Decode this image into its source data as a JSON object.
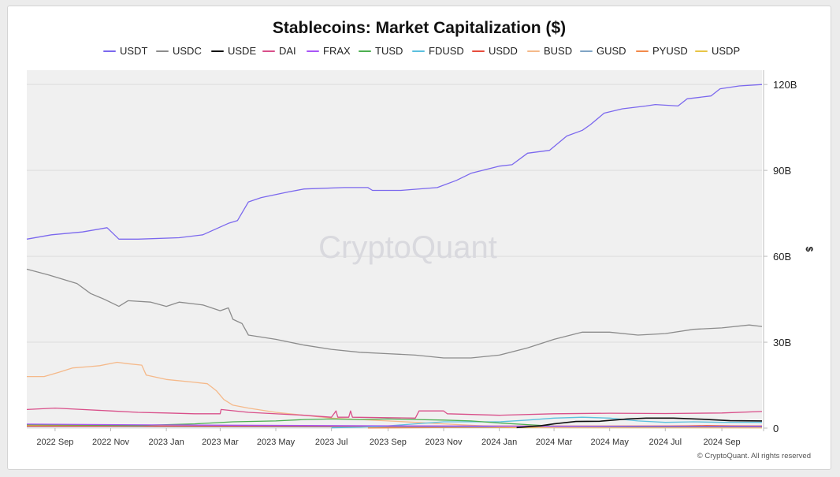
{
  "chart_data": {
    "type": "line",
    "title": "Stablecoins: Market Capitalization ($)",
    "ylabel": "$",
    "ylim": [
      0,
      125000000000
    ],
    "yticks": [
      {
        "value": 0,
        "label": "0"
      },
      {
        "value": 30000000000,
        "label": "30B"
      },
      {
        "value": 60000000000,
        "label": "60B"
      },
      {
        "value": 90000000000,
        "label": "90B"
      },
      {
        "value": 120000000000,
        "label": "120B"
      }
    ],
    "xlim": [
      "2022-08-01",
      "2024-10-15"
    ],
    "xticks": [
      {
        "value": "2022-09-01",
        "label": "2022 Sep"
      },
      {
        "value": "2022-11-01",
        "label": "2022 Nov"
      },
      {
        "value": "2023-01-01",
        "label": "2023 Jan"
      },
      {
        "value": "2023-03-01",
        "label": "2023 Mar"
      },
      {
        "value": "2023-05-01",
        "label": "2023 May"
      },
      {
        "value": "2023-07-01",
        "label": "2023 Jul"
      },
      {
        "value": "2023-09-01",
        "label": "2023 Sep"
      },
      {
        "value": "2023-11-01",
        "label": "2023 Nov"
      },
      {
        "value": "2024-01-01",
        "label": "2024 Jan"
      },
      {
        "value": "2024-03-01",
        "label": "2024 Mar"
      },
      {
        "value": "2024-05-01",
        "label": "2024 May"
      },
      {
        "value": "2024-07-01",
        "label": "2024 Jul"
      },
      {
        "value": "2024-09-01",
        "label": "2024 Sep"
      }
    ],
    "grid": true,
    "legend_position": "top",
    "watermark": "CryptoQuant",
    "copyright": "© CryptoQuant. All rights reserved",
    "series": [
      {
        "name": "USDT",
        "color": "#7b68ee",
        "points": [
          [
            "2022-08-01",
            66
          ],
          [
            "2022-08-28",
            67.5
          ],
          [
            "2022-10-01",
            68.5
          ],
          [
            "2022-10-28",
            70
          ],
          [
            "2022-11-10",
            66
          ],
          [
            "2022-12-01",
            66
          ],
          [
            "2023-01-15",
            66.5
          ],
          [
            "2023-02-10",
            67.5
          ],
          [
            "2023-03-10",
            71.5
          ],
          [
            "2023-03-20",
            72.5
          ],
          [
            "2023-04-01",
            79
          ],
          [
            "2023-04-15",
            80.5
          ],
          [
            "2023-05-15",
            82.5
          ],
          [
            "2023-06-01",
            83.5
          ],
          [
            "2023-07-15",
            84
          ],
          [
            "2023-08-10",
            84
          ],
          [
            "2023-08-15",
            83
          ],
          [
            "2023-09-15",
            83
          ],
          [
            "2023-10-25",
            84
          ],
          [
            "2023-11-15",
            86.5
          ],
          [
            "2023-12-01",
            89
          ],
          [
            "2024-01-01",
            91.5
          ],
          [
            "2024-01-15",
            92
          ],
          [
            "2024-02-01",
            96
          ],
          [
            "2024-02-25",
            97
          ],
          [
            "2024-03-15",
            102
          ],
          [
            "2024-04-01",
            104
          ],
          [
            "2024-04-10",
            106
          ],
          [
            "2024-04-25",
            110
          ],
          [
            "2024-05-15",
            111.5
          ],
          [
            "2024-06-10",
            112.5
          ],
          [
            "2024-06-20",
            113
          ],
          [
            "2024-07-15",
            112.5
          ],
          [
            "2024-07-25",
            115
          ],
          [
            "2024-08-20",
            116
          ],
          [
            "2024-08-30",
            118.5
          ],
          [
            "2024-09-20",
            119.5
          ],
          [
            "2024-10-15",
            120
          ]
        ]
      },
      {
        "name": "USDC",
        "color": "#8c8c8c",
        "points": [
          [
            "2022-08-01",
            55.5
          ],
          [
            "2022-08-25",
            53.5
          ],
          [
            "2022-09-25",
            50.5
          ],
          [
            "2022-10-10",
            47
          ],
          [
            "2022-10-25",
            45
          ],
          [
            "2022-11-10",
            42.5
          ],
          [
            "2022-11-20",
            44.5
          ],
          [
            "2022-12-15",
            44
          ],
          [
            "2023-01-01",
            42.5
          ],
          [
            "2023-01-15",
            44
          ],
          [
            "2023-02-10",
            43
          ],
          [
            "2023-03-01",
            41
          ],
          [
            "2023-03-10",
            42
          ],
          [
            "2023-03-15",
            38
          ],
          [
            "2023-03-25",
            36.5
          ],
          [
            "2023-04-01",
            32.5
          ],
          [
            "2023-05-01",
            31
          ],
          [
            "2023-06-01",
            29
          ],
          [
            "2023-07-01",
            27.5
          ],
          [
            "2023-08-01",
            26.5
          ],
          [
            "2023-09-01",
            26
          ],
          [
            "2023-10-01",
            25.5
          ],
          [
            "2023-11-01",
            24.5
          ],
          [
            "2023-12-01",
            24.5
          ],
          [
            "2024-01-01",
            25.5
          ],
          [
            "2024-02-01",
            28
          ],
          [
            "2024-03-01",
            31
          ],
          [
            "2024-04-01",
            33.5
          ],
          [
            "2024-05-01",
            33.5
          ],
          [
            "2024-06-01",
            32.5
          ],
          [
            "2024-07-01",
            33
          ],
          [
            "2024-08-01",
            34.5
          ],
          [
            "2024-09-01",
            35
          ],
          [
            "2024-10-01",
            36
          ],
          [
            "2024-10-15",
            35.5
          ]
        ]
      },
      {
        "name": "USDE",
        "color": "#111111",
        "points": [
          [
            "2024-01-20",
            0.2
          ],
          [
            "2024-02-15",
            0.8
          ],
          [
            "2024-03-01",
            1.5
          ],
          [
            "2024-03-25",
            2.3
          ],
          [
            "2024-04-20",
            2.4
          ],
          [
            "2024-05-20",
            3.2
          ],
          [
            "2024-06-10",
            3.5
          ],
          [
            "2024-07-10",
            3.5
          ],
          [
            "2024-08-10",
            3.1
          ],
          [
            "2024-09-10",
            2.6
          ],
          [
            "2024-10-15",
            2.5
          ]
        ]
      },
      {
        "name": "DAI",
        "color": "#d94f8a",
        "points": [
          [
            "2022-08-01",
            6.5
          ],
          [
            "2022-09-01",
            7
          ],
          [
            "2022-10-01",
            6.5
          ],
          [
            "2022-11-01",
            6
          ],
          [
            "2022-12-01",
            5.5
          ],
          [
            "2023-01-01",
            5.3
          ],
          [
            "2023-02-01",
            5
          ],
          [
            "2023-03-01",
            5
          ],
          [
            "2023-03-02",
            6.5
          ],
          [
            "2023-04-01",
            5.5
          ],
          [
            "2023-06-01",
            4.5
          ],
          [
            "2023-07-01",
            3.8
          ],
          [
            "2023-07-06",
            6
          ],
          [
            "2023-07-08",
            3.8
          ],
          [
            "2023-07-20",
            3.8
          ],
          [
            "2023-07-22",
            6
          ],
          [
            "2023-07-24",
            3.8
          ],
          [
            "2023-10-01",
            3.5
          ],
          [
            "2023-10-05",
            6
          ],
          [
            "2023-11-01",
            6
          ],
          [
            "2023-11-05",
            5
          ],
          [
            "2024-01-01",
            4.5
          ],
          [
            "2024-03-01",
            5
          ],
          [
            "2024-05-01",
            5.2
          ],
          [
            "2024-07-01",
            5.1
          ],
          [
            "2024-09-01",
            5.3
          ],
          [
            "2024-10-15",
            5.8
          ]
        ]
      },
      {
        "name": "FRAX",
        "color": "#a855f7",
        "points": [
          [
            "2022-08-01",
            1.4
          ],
          [
            "2023-01-01",
            1.1
          ],
          [
            "2023-06-01",
            0.9
          ],
          [
            "2024-01-01",
            0.7
          ],
          [
            "2024-10-15",
            0.6
          ]
        ]
      },
      {
        "name": "TUSD",
        "color": "#4caf50",
        "points": [
          [
            "2022-08-01",
            1.2
          ],
          [
            "2022-12-01",
            0.9
          ],
          [
            "2023-02-01",
            1.5
          ],
          [
            "2023-03-15",
            2.2
          ],
          [
            "2023-05-01",
            2.5
          ],
          [
            "2023-06-01",
            3
          ],
          [
            "2023-07-01",
            3.2
          ],
          [
            "2023-08-01",
            3
          ],
          [
            "2023-09-01",
            3.2
          ],
          [
            "2023-10-01",
            3
          ],
          [
            "2023-11-01",
            2.8
          ],
          [
            "2023-12-01",
            2.5
          ],
          [
            "2024-01-01",
            1.8
          ],
          [
            "2024-02-01",
            1.2
          ],
          [
            "2024-03-01",
            0.7
          ],
          [
            "2024-06-01",
            0.5
          ],
          [
            "2024-10-15",
            0.5
          ]
        ]
      },
      {
        "name": "FDUSD",
        "color": "#5bc0de",
        "points": [
          [
            "2023-07-01",
            0.1
          ],
          [
            "2023-08-01",
            0.3
          ],
          [
            "2023-09-01",
            0.8
          ],
          [
            "2023-10-01",
            1.5
          ],
          [
            "2023-11-01",
            2.2
          ],
          [
            "2024-01-01",
            2.2
          ],
          [
            "2024-02-01",
            2.8
          ],
          [
            "2024-03-01",
            3.5
          ],
          [
            "2024-04-01",
            3.8
          ],
          [
            "2024-05-01",
            3.5
          ],
          [
            "2024-06-01",
            2.5
          ],
          [
            "2024-07-01",
            2
          ],
          [
            "2024-08-01",
            2.2
          ],
          [
            "2024-09-01",
            2
          ],
          [
            "2024-10-15",
            2
          ]
        ]
      },
      {
        "name": "USDD",
        "color": "#e74c3c",
        "points": [
          [
            "2022-08-01",
            0.7
          ],
          [
            "2023-06-01",
            0.7
          ],
          [
            "2024-10-15",
            0.75
          ]
        ]
      },
      {
        "name": "BUSD",
        "color": "#f5b98a",
        "points": [
          [
            "2022-08-01",
            18
          ],
          [
            "2022-08-20",
            18
          ],
          [
            "2022-09-05",
            19.5
          ],
          [
            "2022-09-20",
            21
          ],
          [
            "2022-10-10",
            21.5
          ],
          [
            "2022-10-20",
            21.8
          ],
          [
            "2022-11-08",
            23
          ],
          [
            "2022-11-20",
            22.5
          ],
          [
            "2022-12-05",
            22
          ],
          [
            "2022-12-10",
            18.5
          ],
          [
            "2023-01-01",
            17
          ],
          [
            "2023-02-01",
            16
          ],
          [
            "2023-02-15",
            15.5
          ],
          [
            "2023-02-25",
            13
          ],
          [
            "2023-03-05",
            10
          ],
          [
            "2023-03-15",
            8
          ],
          [
            "2023-04-01",
            7
          ],
          [
            "2023-05-01",
            5.5
          ],
          [
            "2023-06-01",
            4.5
          ],
          [
            "2023-07-01",
            3.5
          ],
          [
            "2023-08-01",
            3
          ],
          [
            "2023-09-01",
            2.5
          ],
          [
            "2023-10-01",
            2
          ],
          [
            "2023-11-01",
            1.5
          ],
          [
            "2023-12-01",
            1
          ],
          [
            "2024-01-01",
            0.5
          ],
          [
            "2024-03-01",
            0.2
          ],
          [
            "2024-10-15",
            0.1
          ]
        ]
      },
      {
        "name": "GUSD",
        "color": "#7fa4c4",
        "points": [
          [
            "2022-08-01",
            0.6
          ],
          [
            "2023-06-01",
            0.5
          ],
          [
            "2024-10-15",
            0.3
          ]
        ]
      },
      {
        "name": "PYUSD",
        "color": "#f28a4b",
        "points": [
          [
            "2023-08-10",
            0.05
          ],
          [
            "2024-01-01",
            0.3
          ],
          [
            "2024-06-01",
            0.4
          ],
          [
            "2024-08-15",
            0.9
          ],
          [
            "2024-10-15",
            0.6
          ]
        ]
      },
      {
        "name": "USDP",
        "color": "#e8c547",
        "points": [
          [
            "2022-08-01",
            0.9
          ],
          [
            "2023-01-01",
            0.8
          ],
          [
            "2023-06-01",
            0.5
          ],
          [
            "2024-01-01",
            0.2
          ],
          [
            "2024-10-15",
            0.1
          ]
        ]
      }
    ]
  }
}
